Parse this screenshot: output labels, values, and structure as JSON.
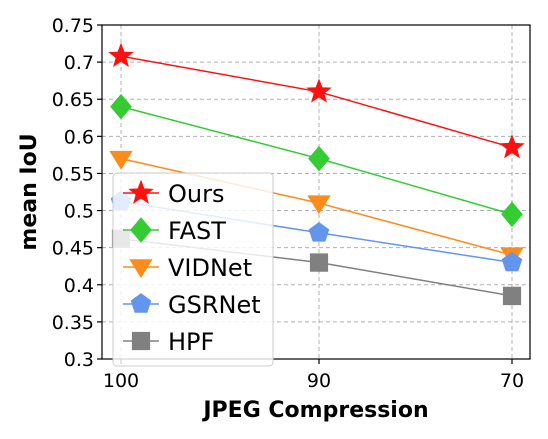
{
  "chart_data": {
    "type": "line",
    "xlabel": "JPEG Compression",
    "ylabel": "mean IoU",
    "categories": [
      "100",
      "90",
      "70"
    ],
    "yticks": [
      "0.3",
      "0.35",
      "0.4",
      "0.45",
      "0.5",
      "0.55",
      "0.6",
      "0.65",
      "0.7",
      "0.75"
    ],
    "ylim": [
      0.3,
      0.75
    ],
    "grid": true,
    "legend_position": "lower-left",
    "series": [
      {
        "name": "Ours",
        "values": [
          0.708,
          0.66,
          0.585
        ],
        "color": "#ff1010",
        "marker": "star"
      },
      {
        "name": "FAST",
        "values": [
          0.64,
          0.57,
          0.495
        ],
        "color": "#33cc33",
        "marker": "diamond"
      },
      {
        "name": "VIDNet",
        "values": [
          0.57,
          0.51,
          0.44
        ],
        "color": "#ff8c1a",
        "marker": "triangle-down"
      },
      {
        "name": "GSRNet",
        "values": [
          0.512,
          0.47,
          0.43
        ],
        "color": "#6495ed",
        "marker": "pentagon"
      },
      {
        "name": "HPF",
        "values": [
          0.462,
          0.43,
          0.385
        ],
        "color": "#808080",
        "marker": "square"
      }
    ]
  }
}
